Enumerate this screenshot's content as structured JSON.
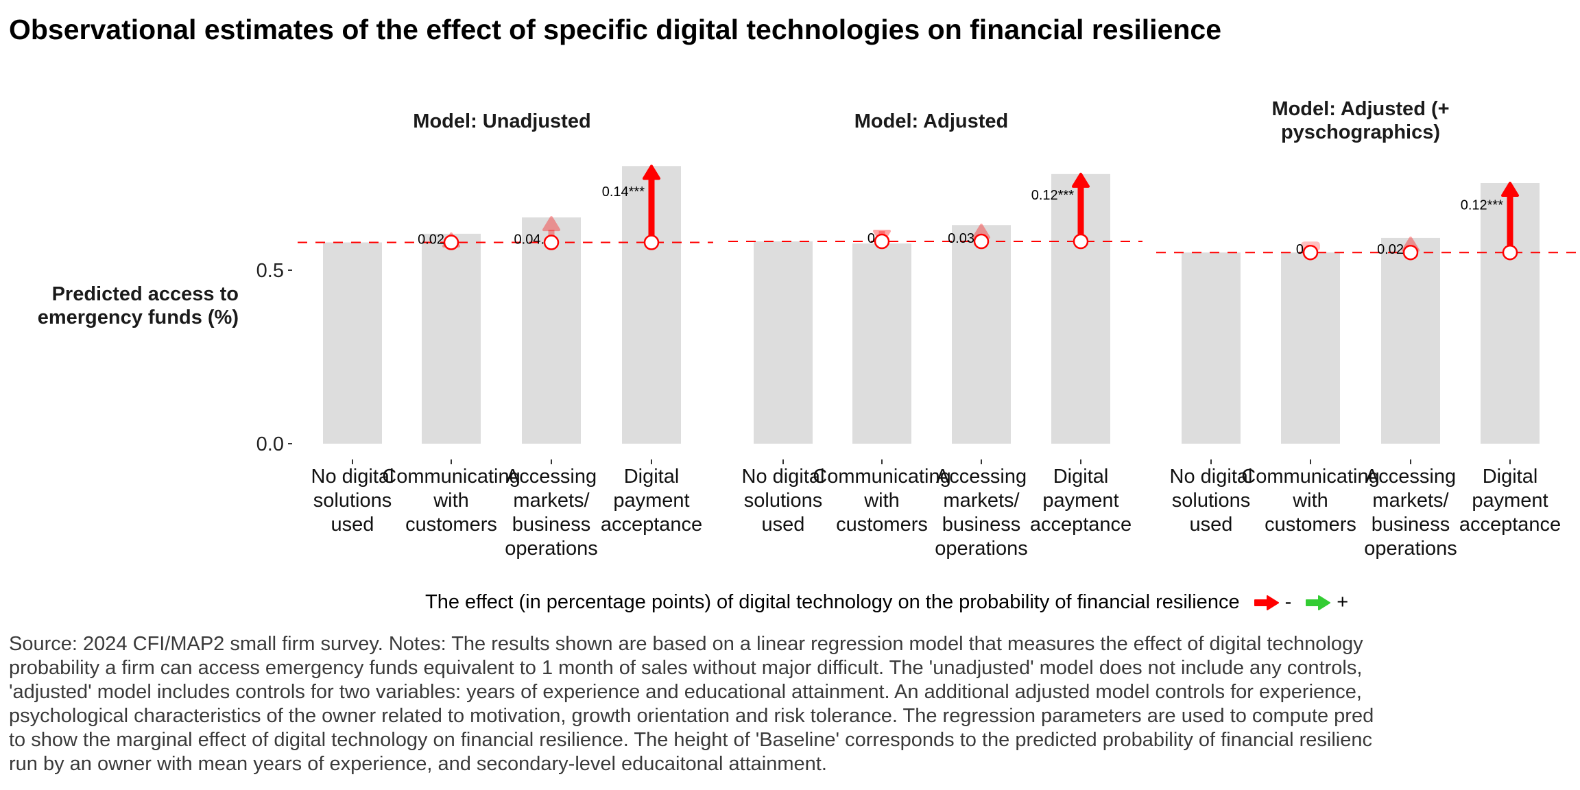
{
  "title": "Observational estimates of the effect of specific digital technologies on financial resilience",
  "colors": {
    "bar": "#dddddd",
    "baseline": "#ff0000",
    "negative_arrow": "#ff0000",
    "positive_arrow": "#33cc33",
    "point_stroke": "#ff0000",
    "point_fill": "#ffffff"
  },
  "legend": {
    "title": "The effect (in percentage points) of digital technology on the probability of financial resilience",
    "items": [
      {
        "label": "-",
        "color": "#ff0000",
        "icon": "arrow-right-icon"
      },
      {
        "label": "+",
        "color": "#33cc33",
        "icon": "arrow-right-icon"
      }
    ]
  },
  "caption": "Source: 2024 CFI/MAP2 small firm survey. Notes: The results shown are based on a linear regression model that measures the effect of digital technology\nprobability a firm can access emergency funds equivalent to 1 month of sales without major difficult. The 'unadjusted' model does not include any controls,\n'adjusted' model includes controls for two variables: years of experience and educational attainment. An additional adjusted model controls for experience,\npsychological characteristics of the owner related to motivation, growth orientation and risk tolerance. The regression parameters are used to compute pred\nto show the marginal effect of digital technology on financial resilience. The height of 'Baseline' corresponds to the predicted probability of financial resilienc\nrun by an owner with mean years of experience, and secondary-level educaitonal attainment.",
  "chart_data": {
    "type": "bar",
    "title": "Observational estimates of the effect of specific digital technologies on financial resilience",
    "xlabel": "",
    "ylabel": "Predicted access to emergency funds (%)",
    "ylabel_lines": [
      "Predicted access to",
      "emergency funds (%)"
    ],
    "ylim": [
      0,
      0.8
    ],
    "yticks": [
      0.0,
      0.5
    ],
    "ytick_labels": [
      "0.0",
      "0.5"
    ],
    "grid": false,
    "legend_position": "bottom",
    "categories": [
      "No digital solutions used",
      "Communicating with customers",
      "Accessing markets/ business operations",
      "Digital payment acceptance"
    ],
    "category_label_lines": [
      [
        "No digital",
        "solutions",
        "used"
      ],
      [
        "Communicating",
        "with",
        "customers"
      ],
      [
        "Accessing",
        "markets/",
        "business",
        "operations"
      ],
      [
        "Digital",
        "payment",
        "acceptance"
      ]
    ],
    "panels": [
      {
        "title_lines": [
          "Model: Unadjusted"
        ],
        "baseline": 0.58,
        "values": [
          0.58,
          0.605,
          0.652,
          0.8
        ],
        "effects": [
          null,
          0.02,
          0.04,
          0.14
        ],
        "effect_labels": [
          "",
          "0.02",
          "0.04.",
          "0.14***"
        ],
        "significant": [
          false,
          false,
          false,
          true
        ]
      },
      {
        "title_lines": [
          "Model: Adjusted"
        ],
        "baseline": 0.583,
        "values": [
          0.583,
          0.577,
          0.63,
          0.777
        ],
        "effects": [
          null,
          0.0,
          0.03,
          0.12
        ],
        "effect_labels": [
          "",
          "0",
          "0.03",
          "0.12***"
        ],
        "significant": [
          false,
          false,
          false,
          true
        ]
      },
      {
        "title_lines": [
          "Model: Adjusted (+",
          "pyschographics)"
        ],
        "baseline": 0.551,
        "values": [
          0.551,
          0.551,
          0.593,
          0.751
        ],
        "effects": [
          null,
          0.0,
          0.02,
          0.12
        ],
        "effect_labels": [
          "",
          "0",
          "0.02",
          "0.12***"
        ],
        "significant": [
          false,
          false,
          false,
          true
        ]
      }
    ]
  }
}
